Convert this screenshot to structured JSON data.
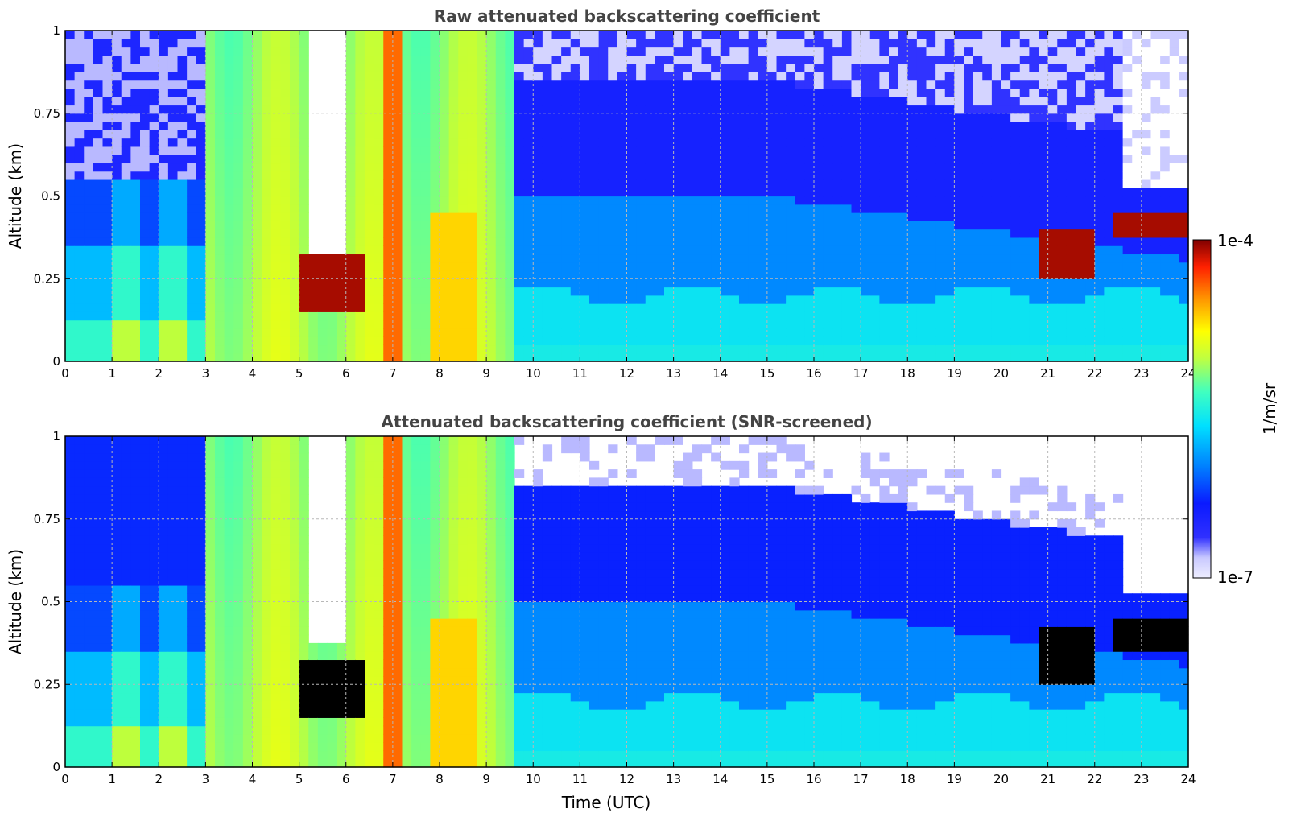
{
  "figure": {
    "xlabel": "Time (UTC)",
    "colorbar": {
      "label": "1/m/sr",
      "max_label": "1e-4",
      "min_label": "1e-7"
    }
  },
  "chart_data": [
    {
      "type": "heatmap",
      "title": "Raw attenuated backscattering coefficient",
      "xlabel": "",
      "ylabel": "Altitude (km)",
      "xlim": [
        0,
        24
      ],
      "ylim": [
        0,
        1
      ],
      "x_ticks": [
        0,
        1,
        2,
        3,
        4,
        5,
        6,
        7,
        8,
        9,
        10,
        11,
        12,
        13,
        14,
        15,
        16,
        17,
        18,
        19,
        20,
        21,
        22,
        23,
        24
      ],
      "y_ticks": [
        0,
        0.25,
        0.5,
        0.75,
        1
      ],
      "y_tick_labels": [
        "0",
        "0.25",
        "0.5",
        "0.75",
        "1"
      ],
      "grid": true,
      "colormap": "jet",
      "color_scale": "log",
      "value_range": [
        "1e-7",
        "1e-4"
      ],
      "screened": false,
      "features": [
        {
          "name": "fog-layer-top-haze",
          "x": [
            3.0,
            9.7
          ],
          "y": [
            0,
            1
          ],
          "level": "high"
        },
        {
          "name": "low-cloud",
          "x": [
            5.1,
            6.4
          ],
          "y": [
            0.15,
            0.32
          ],
          "level": "max"
        },
        {
          "name": "clear-gap",
          "x": [
            5.2,
            6.0
          ],
          "y": [
            0.32,
            1
          ],
          "level": "none"
        },
        {
          "name": "descending-plume",
          "x": [
            6.8,
            7.1
          ],
          "y": [
            0,
            1
          ],
          "level": "very-high"
        },
        {
          "name": "boundary-layer",
          "x": [
            9.7,
            22.5
          ],
          "y": [
            0,
            0.5
          ],
          "level": "mid"
        },
        {
          "name": "cloud-layer",
          "x": [
            20.9,
            21.9
          ],
          "y": [
            0.25,
            0.4
          ],
          "level": "max"
        },
        {
          "name": "stratus-deck",
          "x": [
            22.5,
            23.9
          ],
          "y": [
            0.37,
            0.45
          ],
          "level": "max"
        }
      ]
    },
    {
      "type": "heatmap",
      "title": "Attenuated backscattering coefficient (SNR-screened)",
      "xlabel": "Time (UTC)",
      "ylabel": "Altitude (km)",
      "xlim": [
        0,
        24
      ],
      "ylim": [
        0,
        1
      ],
      "x_ticks": [
        0,
        1,
        2,
        3,
        4,
        5,
        6,
        7,
        8,
        9,
        10,
        11,
        12,
        13,
        14,
        15,
        16,
        17,
        18,
        19,
        20,
        21,
        22,
        23,
        24
      ],
      "y_ticks": [
        0,
        0.25,
        0.5,
        0.75,
        1
      ],
      "y_tick_labels": [
        "0",
        "0.25",
        "0.5",
        "0.75",
        "1"
      ],
      "grid": true,
      "colormap": "jet",
      "color_scale": "log",
      "value_range": [
        "1e-7",
        "1e-4"
      ],
      "screened": true,
      "features": [
        {
          "name": "fog-layer-top-haze",
          "x": [
            3.0,
            9.7
          ],
          "y": [
            0,
            1
          ],
          "level": "high"
        },
        {
          "name": "low-cloud",
          "x": [
            5.1,
            6.4
          ],
          "y": [
            0.15,
            0.32
          ],
          "level": "saturated"
        },
        {
          "name": "clear-gap",
          "x": [
            5.2,
            6.0
          ],
          "y": [
            0.38,
            1
          ],
          "level": "none"
        },
        {
          "name": "descending-plume",
          "x": [
            6.8,
            7.1
          ],
          "y": [
            0,
            1
          ],
          "level": "very-high"
        },
        {
          "name": "boundary-layer",
          "x": [
            9.7,
            22.5
          ],
          "y": [
            0,
            0.8
          ],
          "level": "low-mid"
        },
        {
          "name": "cloud-layer",
          "x": [
            20.9,
            21.9
          ],
          "y": [
            0.25,
            0.42
          ],
          "level": "saturated"
        },
        {
          "name": "stratus-deck",
          "x": [
            22.5,
            23.9
          ],
          "y": [
            0.35,
            0.46
          ],
          "level": "saturated"
        }
      ]
    }
  ]
}
